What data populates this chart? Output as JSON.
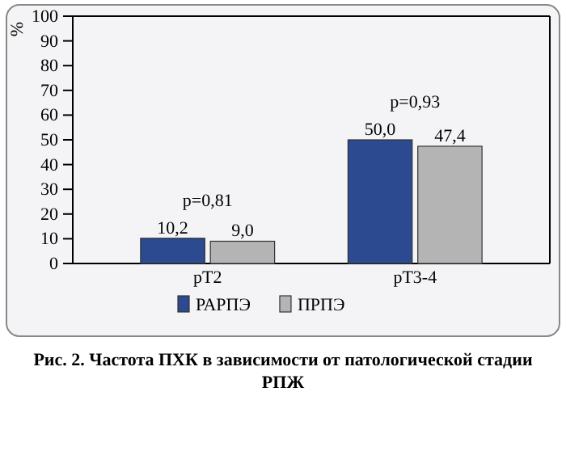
{
  "chart_data": {
    "type": "bar",
    "ylabel": "%",
    "categories": [
      "pT2",
      "pT3-4"
    ],
    "series": [
      {
        "name": "РАРПЭ",
        "color": "#2b4a8f",
        "values": [
          10.2,
          50.0
        ],
        "value_labels": [
          "10,2",
          "50,0"
        ]
      },
      {
        "name": "ПРПЭ",
        "color": "#b4b4b4",
        "values": [
          9.0,
          47.4
        ],
        "value_labels": [
          "9,0",
          "47,4"
        ]
      }
    ],
    "ylim": [
      0,
      100
    ],
    "yticks": [
      0,
      10,
      20,
      30,
      40,
      50,
      60,
      70,
      80,
      90,
      100
    ],
    "grid": false,
    "legend": "bottom",
    "annotations": [
      "p=0,81",
      "p=0,93",
      "Рис. 2. Частота ПХК в зависимости от патологической стадии РПЖ"
    ]
  }
}
